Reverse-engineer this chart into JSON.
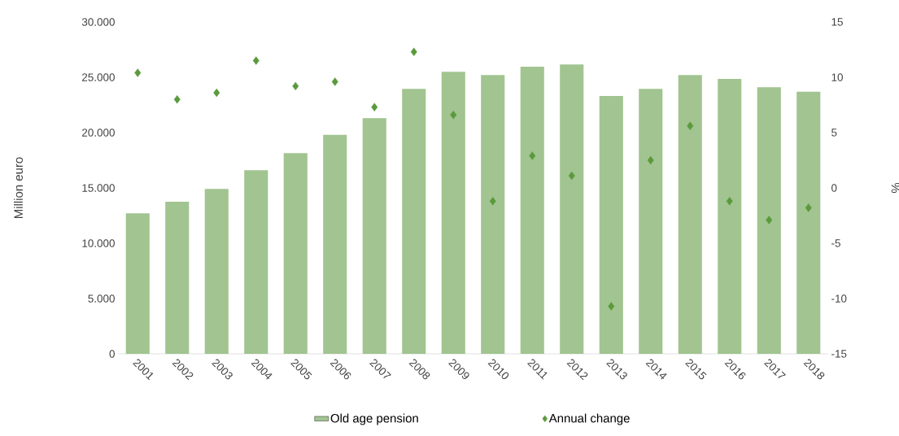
{
  "chart_data": {
    "type": "bar",
    "ylabel": "Million euro",
    "y2label": "%",
    "categories": [
      "2001",
      "2002",
      "2003",
      "2004",
      "2005",
      "2006",
      "2007",
      "2008",
      "2009",
      "2010",
      "2011",
      "2012",
      "2013",
      "2014",
      "2015",
      "2016",
      "2017",
      "2018"
    ],
    "series": [
      {
        "name": "Old age pension",
        "color": "#a1c490",
        "values": [
          12700,
          13750,
          14900,
          16600,
          18150,
          19800,
          21300,
          23950,
          25500,
          25200,
          25950,
          26150,
          23300,
          23950,
          25200,
          24850,
          24100,
          23700
        ]
      },
      {
        "name": "Annual change",
        "type": "scatter",
        "axis": "y2",
        "color": "#5b9a3c",
        "values": [
          10.4,
          8.0,
          8.6,
          11.5,
          9.2,
          9.6,
          7.3,
          12.3,
          6.6,
          -1.2,
          2.9,
          1.1,
          -10.7,
          2.5,
          5.6,
          -1.2,
          -2.9,
          -1.8
        ]
      }
    ],
    "ylim": [
      0,
      30000
    ],
    "yticks": [
      {
        "value": 0,
        "label": "0"
      },
      {
        "value": 5000,
        "label": "5.000"
      },
      {
        "value": 10000,
        "label": "10.000"
      },
      {
        "value": 15000,
        "label": "15.000"
      },
      {
        "value": 20000,
        "label": "20.000"
      },
      {
        "value": 25000,
        "label": "25.000"
      },
      {
        "value": 30000,
        "label": "30.000"
      }
    ],
    "y2lim": [
      -15,
      15
    ],
    "y2ticks": [
      -15,
      -10,
      -5,
      0,
      5,
      10,
      15
    ],
    "marker": "diamond",
    "legend": "bottom",
    "grid": false
  }
}
